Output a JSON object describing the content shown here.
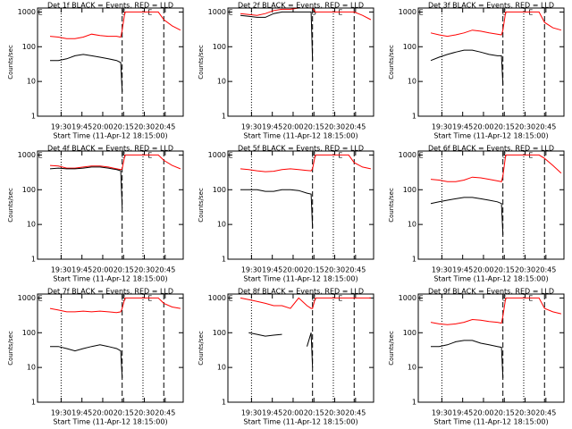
{
  "chart_data": [
    {
      "type": "line",
      "title": "Det 1f BLACK = Events, RED = LLD",
      "xlabel": "Start Time (11-Apr-12 18:15:00)",
      "ylabel": "Counts/sec",
      "log_y": true,
      "x": [
        1162,
        1168,
        1174,
        1180,
        1186,
        1192,
        1198,
        1204,
        1210,
        1213,
        1214,
        1216,
        1240,
        1244,
        1250,
        1256
      ],
      "series": [
        {
          "color": "#ff0000",
          "values": [
            200,
            190,
            170,
            170,
            190,
            230,
            210,
            200,
            200,
            190,
            300,
            1000,
            1000,
            600,
            400,
            300
          ]
        },
        {
          "color": "#000000",
          "values": [
            40,
            40,
            45,
            55,
            60,
            55,
            50,
            45,
            40,
            35,
            5,
            null,
            null,
            null,
            null,
            null
          ]
        }
      ],
      "xlim": [
        1153,
        1258
      ],
      "xticks": [
        {
          "value": 1170,
          "label": "19:30"
        },
        {
          "value": 1185,
          "label": "19:45"
        },
        {
          "value": 1200,
          "label": "20:00"
        },
        {
          "value": 1215,
          "label": "20:15"
        },
        {
          "value": 1230,
          "label": "20:30"
        },
        {
          "value": 1245,
          "label": "20:45"
        }
      ],
      "ylim": [
        1,
        1300
      ],
      "yticks": [
        1,
        10,
        100,
        1000
      ],
      "dotted_lines": [
        1170,
        1229
      ],
      "dashed_lines": [
        1214,
        1244
      ],
      "annotations": [
        {
          "text": "E",
          "x": 1155
        },
        {
          "text": "S",
          "x": 1215
        },
        {
          "text": "E",
          "x": 1234
        }
      ]
    },
    {
      "type": "line",
      "title": "Det 2f BLACK = Events, RED = LLD",
      "xlabel": "Start Time (11-Apr-12 18:15:00)",
      "ylabel": "Counts/sec",
      "log_y": true,
      "x": [
        1162,
        1168,
        1174,
        1180,
        1186,
        1192,
        1198,
        1204,
        1210,
        1213,
        1214,
        1216,
        1240,
        1244,
        1250,
        1256
      ],
      "series": [
        {
          "color": "#ff0000",
          "values": [
            900,
            850,
            800,
            900,
            1100,
            1200,
            1200,
            1300,
            1300,
            1300,
            1300,
            1000,
            1000,
            1000,
            800,
            600
          ]
        },
        {
          "color": "#000000",
          "values": [
            800,
            750,
            700,
            700,
            900,
            1000,
            1000,
            1000,
            1000,
            1000,
            40,
            null,
            null,
            null,
            null,
            null
          ]
        }
      ],
      "xlim": [
        1153,
        1258
      ],
      "xticks": [
        {
          "value": 1170,
          "label": "19:30"
        },
        {
          "value": 1185,
          "label": "19:45"
        },
        {
          "value": 1200,
          "label": "20:00"
        },
        {
          "value": 1215,
          "label": "20:15"
        },
        {
          "value": 1230,
          "label": "20:30"
        },
        {
          "value": 1245,
          "label": "20:45"
        }
      ],
      "ylim": [
        1,
        1300
      ],
      "yticks": [
        1,
        10,
        100,
        1000
      ],
      "dotted_lines": [
        1170,
        1229
      ],
      "dashed_lines": [
        1214,
        1244
      ],
      "annotations": [
        {
          "text": "E",
          "x": 1155
        },
        {
          "text": "S",
          "x": 1215
        },
        {
          "text": "E",
          "x": 1234
        }
      ]
    },
    {
      "type": "line",
      "title": "Det 3f BLACK = Events, RED = LLD",
      "xlabel": "Start Time (11-Apr-12 18:15:00)",
      "ylabel": "Counts/sec",
      "log_y": true,
      "x": [
        1162,
        1168,
        1174,
        1180,
        1186,
        1192,
        1198,
        1204,
        1210,
        1213,
        1214,
        1216,
        1240,
        1244,
        1250,
        1256
      ],
      "series": [
        {
          "color": "#ff0000",
          "values": [
            250,
            220,
            200,
            220,
            250,
            300,
            280,
            250,
            230,
            220,
            300,
            1000,
            1000,
            500,
            350,
            300
          ]
        },
        {
          "color": "#000000",
          "values": [
            40,
            50,
            60,
            70,
            80,
            80,
            70,
            60,
            55,
            55,
            8,
            null,
            null,
            null,
            null,
            null
          ]
        }
      ],
      "xlim": [
        1153,
        1258
      ],
      "xticks": [
        {
          "value": 1170,
          "label": "19:30"
        },
        {
          "value": 1185,
          "label": "19:45"
        },
        {
          "value": 1200,
          "label": "20:00"
        },
        {
          "value": 1215,
          "label": "20:15"
        },
        {
          "value": 1230,
          "label": "20:30"
        },
        {
          "value": 1245,
          "label": "20:45"
        }
      ],
      "ylim": [
        1,
        1300
      ],
      "yticks": [
        1,
        10,
        100,
        1000
      ],
      "dotted_lines": [
        1170,
        1229
      ],
      "dashed_lines": [
        1214,
        1244
      ],
      "annotations": [
        {
          "text": "E",
          "x": 1155
        },
        {
          "text": "S",
          "x": 1215
        },
        {
          "text": "E",
          "x": 1234
        }
      ]
    },
    {
      "type": "line",
      "title": "Det 4f BLACK = Events, RED = LLD",
      "xlabel": "Start Time (11-Apr-12 18:15:00)",
      "ylabel": "Counts/sec",
      "log_y": true,
      "x": [
        1162,
        1168,
        1174,
        1180,
        1186,
        1192,
        1198,
        1204,
        1210,
        1213,
        1214,
        1216,
        1240,
        1244,
        1250,
        1256
      ],
      "series": [
        {
          "color": "#ff0000",
          "values": [
            500,
            480,
            420,
            420,
            450,
            480,
            480,
            450,
            400,
            380,
            400,
            1000,
            1000,
            700,
            500,
            400
          ]
        },
        {
          "color": "#000000",
          "values": [
            400,
            420,
            400,
            400,
            420,
            450,
            450,
            420,
            380,
            350,
            30,
            null,
            null,
            null,
            null,
            null
          ]
        }
      ],
      "xlim": [
        1153,
        1258
      ],
      "xticks": [
        {
          "value": 1170,
          "label": "19:30"
        },
        {
          "value": 1185,
          "label": "19:45"
        },
        {
          "value": 1200,
          "label": "20:00"
        },
        {
          "value": 1215,
          "label": "20:15"
        },
        {
          "value": 1230,
          "label": "20:30"
        },
        {
          "value": 1245,
          "label": "20:45"
        }
      ],
      "ylim": [
        1,
        1300
      ],
      "yticks": [
        1,
        10,
        100,
        1000
      ],
      "dotted_lines": [
        1170,
        1229
      ],
      "dashed_lines": [
        1214,
        1244
      ],
      "annotations": [
        {
          "text": "E",
          "x": 1155
        },
        {
          "text": "S",
          "x": 1215
        },
        {
          "text": "E",
          "x": 1234
        }
      ]
    },
    {
      "type": "line",
      "title": "Det 5f BLACK = Events, RED = LLD",
      "xlabel": "Start Time (11-Apr-12 18:15:00)",
      "ylabel": "Counts/sec",
      "log_y": true,
      "x": [
        1162,
        1168,
        1174,
        1180,
        1186,
        1192,
        1198,
        1204,
        1210,
        1213,
        1214,
        1216,
        1240,
        1244,
        1250,
        1256
      ],
      "series": [
        {
          "color": "#ff0000",
          "values": [
            400,
            380,
            350,
            330,
            340,
            380,
            400,
            380,
            360,
            350,
            400,
            1000,
            1000,
            600,
            450,
            400
          ]
        },
        {
          "color": "#000000",
          "values": [
            100,
            100,
            100,
            90,
            90,
            100,
            100,
            95,
            80,
            75,
            8,
            null,
            null,
            null,
            null,
            null
          ]
        }
      ],
      "xlim": [
        1153,
        1258
      ],
      "xticks": [
        {
          "value": 1170,
          "label": "19:30"
        },
        {
          "value": 1185,
          "label": "19:45"
        },
        {
          "value": 1200,
          "label": "20:00"
        },
        {
          "value": 1215,
          "label": "20:15"
        },
        {
          "value": 1230,
          "label": "20:30"
        },
        {
          "value": 1245,
          "label": "20:45"
        }
      ],
      "ylim": [
        1,
        1300
      ],
      "yticks": [
        1,
        10,
        100,
        1000
      ],
      "dotted_lines": [
        1170,
        1229
      ],
      "dashed_lines": [
        1214,
        1244
      ],
      "annotations": [
        {
          "text": "E",
          "x": 1155
        },
        {
          "text": "S",
          "x": 1215
        },
        {
          "text": "E",
          "x": 1234
        }
      ]
    },
    {
      "type": "line",
      "title": "Det 6f BLACK = Events, RED = LLD",
      "xlabel": "Start Time (11-Apr-12 18:15:00)",
      "ylabel": "Counts/sec",
      "log_y": true,
      "x": [
        1162,
        1168,
        1174,
        1180,
        1186,
        1192,
        1198,
        1204,
        1210,
        1213,
        1214,
        1216,
        1240,
        1244,
        1250,
        1256
      ],
      "series": [
        {
          "color": "#ff0000",
          "values": [
            200,
            190,
            170,
            170,
            190,
            230,
            220,
            200,
            180,
            170,
            250,
            1000,
            1000,
            800,
            500,
            300
          ]
        },
        {
          "color": "#000000",
          "values": [
            40,
            45,
            50,
            55,
            60,
            60,
            55,
            50,
            45,
            40,
            5,
            null,
            null,
            null,
            null,
            null
          ]
        }
      ],
      "xlim": [
        1153,
        1258
      ],
      "xticks": [
        {
          "value": 1170,
          "label": "19:30"
        },
        {
          "value": 1185,
          "label": "19:45"
        },
        {
          "value": 1200,
          "label": "20:00"
        },
        {
          "value": 1215,
          "label": "20:15"
        },
        {
          "value": 1230,
          "label": "20:30"
        },
        {
          "value": 1245,
          "label": "20:45"
        }
      ],
      "ylim": [
        1,
        1300
      ],
      "yticks": [
        1,
        10,
        100,
        1000
      ],
      "dotted_lines": [
        1170,
        1229
      ],
      "dashed_lines": [
        1214,
        1244
      ],
      "annotations": [
        {
          "text": "E",
          "x": 1155
        },
        {
          "text": "S",
          "x": 1215
        },
        {
          "text": "E",
          "x": 1234
        }
      ]
    },
    {
      "type": "line",
      "title": "Det 7f BLACK = Events, RED = LLD",
      "xlabel": "Start Time (11-Apr-12 18:15:00)",
      "ylabel": "Counts/sec",
      "log_y": true,
      "x": [
        1162,
        1168,
        1174,
        1180,
        1186,
        1192,
        1198,
        1204,
        1210,
        1213,
        1214,
        1216,
        1240,
        1244,
        1250,
        1256
      ],
      "series": [
        {
          "color": "#ff0000",
          "values": [
            500,
            450,
            400,
            400,
            420,
            400,
            420,
            400,
            380,
            400,
            500,
            1000,
            1000,
            700,
            550,
            500
          ]
        },
        {
          "color": "#000000",
          "values": [
            40,
            40,
            35,
            30,
            35,
            40,
            45,
            40,
            35,
            30,
            5,
            null,
            null,
            null,
            null,
            null
          ]
        }
      ],
      "xlim": [
        1153,
        1258
      ],
      "xticks": [
        {
          "value": 1170,
          "label": "19:30"
        },
        {
          "value": 1185,
          "label": "19:45"
        },
        {
          "value": 1200,
          "label": "20:00"
        },
        {
          "value": 1215,
          "label": "20:15"
        },
        {
          "value": 1230,
          "label": "20:30"
        },
        {
          "value": 1245,
          "label": "20:45"
        }
      ],
      "ylim": [
        1,
        1300
      ],
      "yticks": [
        1,
        10,
        100,
        1000
      ],
      "dotted_lines": [
        1170,
        1229
      ],
      "dashed_lines": [
        1214,
        1244
      ],
      "annotations": [
        {
          "text": "E",
          "x": 1155
        },
        {
          "text": "S",
          "x": 1215
        },
        {
          "text": "E",
          "x": 1234
        }
      ]
    },
    {
      "type": "line",
      "title": "Det 8f BLACK = Events, RED = LLD",
      "xlabel": "Start Time (11-Apr-12 18:15:00)",
      "ylabel": "Counts/sec",
      "log_y": true,
      "x": [
        1162,
        1168,
        1174,
        1180,
        1186,
        1192,
        1198,
        1204,
        1210,
        1213,
        1214,
        1216,
        1240,
        1244,
        1250,
        1256
      ],
      "series": [
        {
          "color": "#ff0000",
          "values": [
            1000,
            900,
            800,
            700,
            600,
            600,
            500,
            1000,
            600,
            500,
            500,
            1000,
            1000,
            1000,
            1000,
            1000
          ]
        },
        {
          "color": "#000000",
          "values": [
            null,
            100,
            90,
            80,
            85,
            90,
            null,
            null,
            40,
            100,
            10,
            null,
            null,
            null,
            null,
            null
          ]
        }
      ],
      "xlim": [
        1153,
        1258
      ],
      "xticks": [
        {
          "value": 1170,
          "label": "19:30"
        },
        {
          "value": 1185,
          "label": "19:45"
        },
        {
          "value": 1200,
          "label": "20:00"
        },
        {
          "value": 1215,
          "label": "20:15"
        },
        {
          "value": 1230,
          "label": "20:30"
        },
        {
          "value": 1245,
          "label": "20:45"
        }
      ],
      "ylim": [
        1,
        1300
      ],
      "yticks": [
        1,
        10,
        100,
        1000
      ],
      "dotted_lines": [
        1170,
        1229
      ],
      "dashed_lines": [
        1214,
        1244
      ],
      "annotations": [
        {
          "text": "E",
          "x": 1155
        },
        {
          "text": "S",
          "x": 1215
        },
        {
          "text": "E",
          "x": 1234
        }
      ]
    },
    {
      "type": "line",
      "title": "Det 9f BLACK = Events, RED = LLD",
      "xlabel": "Start Time (11-Apr-12 18:15:00)",
      "ylabel": "Counts/sec",
      "log_y": true,
      "x": [
        1162,
        1168,
        1174,
        1180,
        1186,
        1192,
        1198,
        1204,
        1210,
        1213,
        1214,
        1216,
        1240,
        1244,
        1250,
        1256
      ],
      "series": [
        {
          "color": "#ff0000",
          "values": [
            200,
            180,
            170,
            180,
            200,
            240,
            230,
            210,
            200,
            190,
            300,
            1000,
            1000,
            500,
            400,
            350
          ]
        },
        {
          "color": "#000000",
          "values": [
            40,
            40,
            45,
            55,
            60,
            60,
            50,
            45,
            40,
            38,
            5,
            null,
            null,
            null,
            null,
            null
          ]
        }
      ],
      "xlim": [
        1153,
        1258
      ],
      "xticks": [
        {
          "value": 1170,
          "label": "19:30"
        },
        {
          "value": 1185,
          "label": "19:45"
        },
        {
          "value": 1200,
          "label": "20:00"
        },
        {
          "value": 1215,
          "label": "20:15"
        },
        {
          "value": 1230,
          "label": "20:30"
        },
        {
          "value": 1245,
          "label": "20:45"
        }
      ],
      "ylim": [
        1,
        1300
      ],
      "yticks": [
        1,
        10,
        100,
        1000
      ],
      "dotted_lines": [
        1170,
        1229
      ],
      "dashed_lines": [
        1214,
        1244
      ],
      "annotations": [
        {
          "text": "E",
          "x": 1155
        },
        {
          "text": "S",
          "x": 1215
        },
        {
          "text": "E",
          "x": 1234
        }
      ]
    }
  ]
}
